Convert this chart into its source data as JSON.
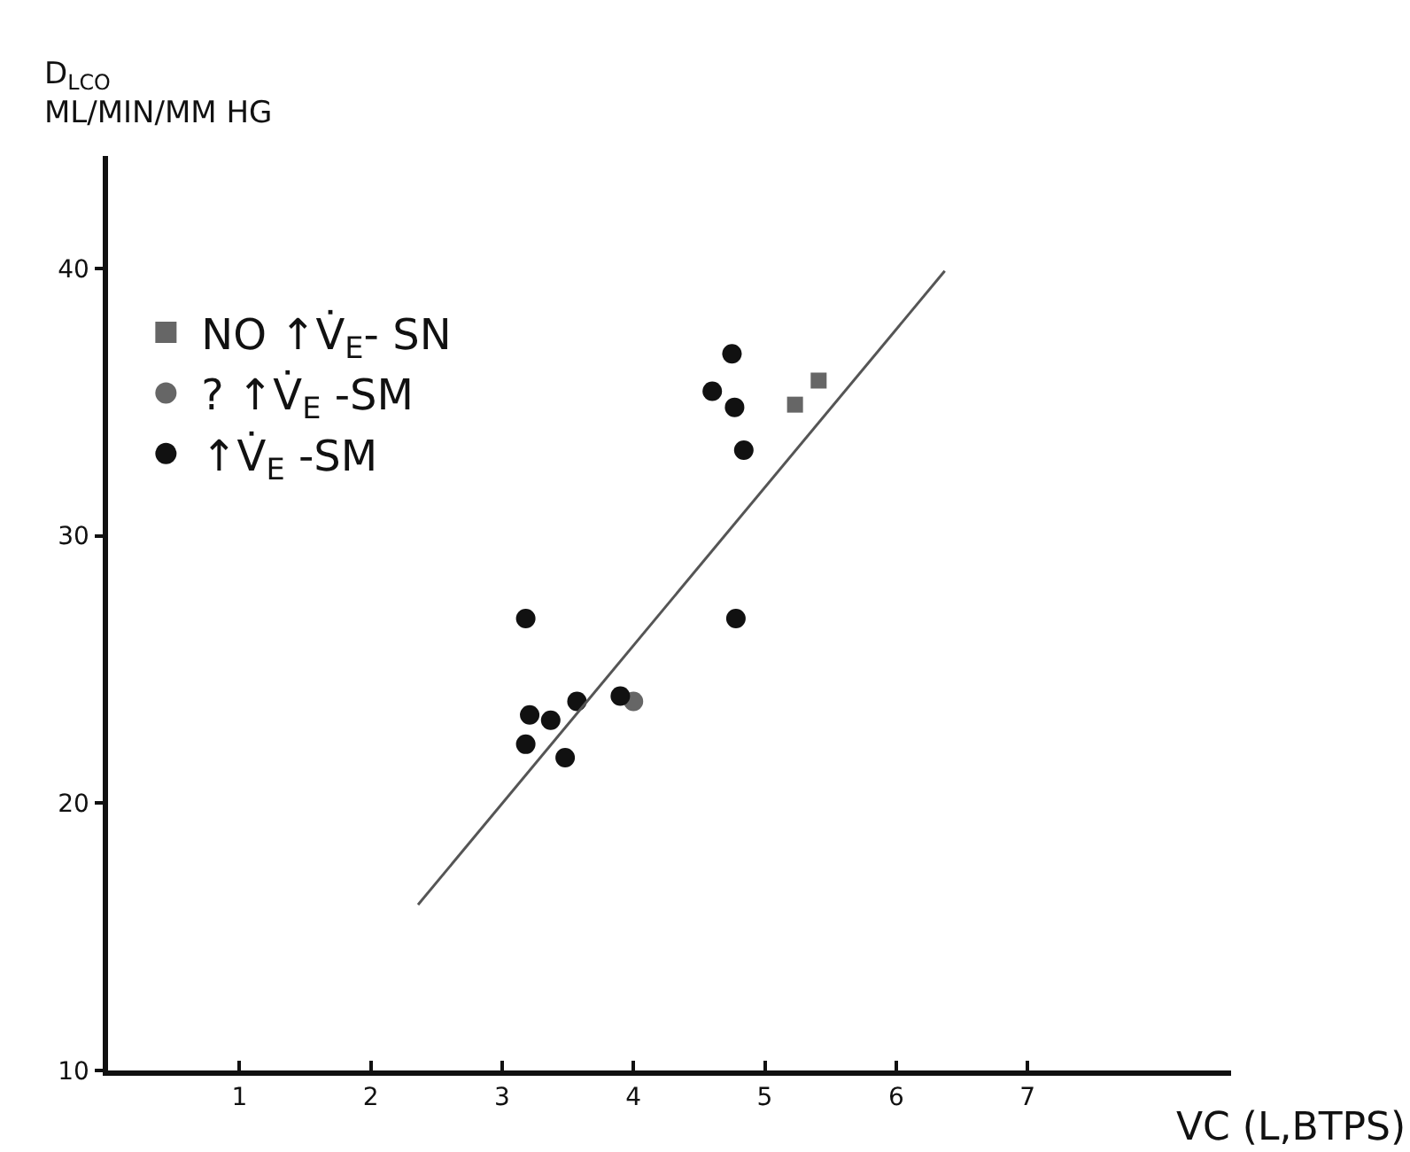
{
  "chart_data": {
    "type": "scatter",
    "xlabel": "VC (L,BTPS)",
    "ylabel": "D$_{LCO}$\nML/MIN/MM HG",
    "xlim": [
      0,
      8.55
    ],
    "ylim": [
      10,
      44.2
    ],
    "xticks": [
      1,
      2,
      3,
      4,
      5,
      6,
      7
    ],
    "yticks": [
      10,
      20,
      30,
      40
    ],
    "grid": false,
    "legend": "top left",
    "series": [
      {
        "name": "NO ↑V̇$_{E}$- SN",
        "color": "#666666",
        "marker": "square",
        "x": [
          5.23,
          5.41
        ],
        "values": [
          34.9,
          35.8
        ]
      },
      {
        "name": "? ↑V̇$_{E}$ -SM",
        "color": "#666666",
        "marker": "circle",
        "x": [
          4.0
        ],
        "values": [
          23.8
        ]
      },
      {
        "name": "↑V̇$_{E}$ -SM",
        "color": "#111111",
        "marker": "circle",
        "x": [
          4.75,
          4.6,
          4.77,
          4.84,
          4.78,
          3.18,
          3.21,
          3.37,
          3.57,
          3.9,
          3.18,
          3.48
        ],
        "values": [
          36.8,
          35.4,
          34.8,
          33.2,
          26.9,
          26.9,
          23.3,
          23.1,
          23.8,
          24.0,
          22.2,
          21.7
        ]
      },
      {
        "type": "line",
        "color": "#555555",
        "marker": "none",
        "line_style": "solid",
        "x": [
          2.36,
          6.37
        ],
        "values": [
          16.2,
          39.9
        ]
      }
    ]
  }
}
